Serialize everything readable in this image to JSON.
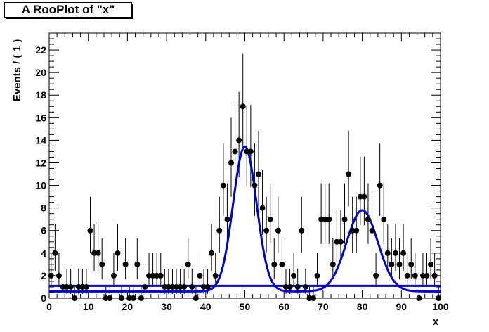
{
  "title": "A RooPlot of \"x\"",
  "chart_data": {
    "type": "scatter",
    "xlabel": "x",
    "ylabel": "Events / ( 1 )",
    "xlim": [
      0,
      100
    ],
    "ylim": [
      0,
      23.5
    ],
    "x_ticks": [
      "0",
      "10",
      "20",
      "30",
      "40",
      "50",
      "60",
      "70",
      "80",
      "90",
      "100"
    ],
    "y_ticks": [
      "0",
      "2",
      "4",
      "6",
      "8",
      "10",
      "12",
      "14",
      "16",
      "18",
      "20",
      "22"
    ],
    "colors": {
      "points": "#000000",
      "curve": "#0000cc"
    },
    "series": [
      {
        "type": "points-with-errors",
        "x": [
          0.5,
          1.5,
          2.5,
          3.5,
          4.5,
          5.5,
          6.5,
          7.5,
          8.5,
          9.5,
          10.5,
          11.5,
          12.5,
          13.5,
          14.5,
          15.5,
          16.5,
          17.5,
          18.5,
          19.5,
          20.5,
          21.5,
          22.5,
          23.5,
          24.5,
          25.5,
          26.5,
          27.5,
          28.5,
          29.5,
          30.5,
          31.5,
          32.5,
          33.5,
          34.5,
          35.5,
          36.5,
          37.5,
          38.5,
          39.5,
          40.5,
          41.5,
          42.5,
          43.5,
          44.5,
          45.5,
          46.5,
          47.5,
          48.5,
          49.5,
          50.5,
          51.5,
          52.5,
          53.5,
          54.5,
          55.5,
          56.5,
          57.5,
          58.5,
          59.5,
          60.5,
          61.5,
          62.5,
          63.5,
          64.5,
          65.5,
          66.5,
          67.5,
          68.5,
          69.5,
          70.5,
          71.5,
          72.5,
          73.5,
          74.5,
          75.5,
          76.5,
          77.5,
          78.5,
          79.5,
          80.5,
          81.5,
          82.5,
          83.5,
          84.5,
          85.5,
          86.5,
          87.5,
          88.5,
          89.5,
          90.5,
          91.5,
          92.5,
          93.5,
          94.5,
          95.5,
          96.5,
          97.5,
          98.5,
          99.5
        ],
        "y": [
          2,
          4,
          2,
          1,
          1,
          1,
          0,
          1,
          1,
          1,
          6,
          4,
          4,
          3,
          0,
          0,
          2,
          4,
          0,
          3,
          0,
          0,
          3,
          0,
          1,
          2,
          2,
          2,
          2,
          1,
          1,
          1,
          1,
          1,
          1,
          3,
          1,
          0,
          2,
          1,
          1,
          4,
          2,
          6,
          10,
          7,
          12,
          13,
          14,
          17,
          13,
          13,
          10,
          11,
          8,
          6,
          7,
          3,
          6,
          3,
          1,
          1,
          2,
          1,
          6,
          1,
          0,
          0,
          2,
          7,
          7,
          7,
          3,
          5,
          5,
          7,
          11,
          6,
          6,
          9,
          9,
          7,
          6,
          2,
          10,
          7,
          4,
          3,
          4,
          3,
          4,
          2,
          3,
          2,
          0,
          2,
          2,
          3,
          2,
          0
        ]
      },
      {
        "type": "curve",
        "model": "flat baseline plus two gaussians",
        "baseline": 0.6,
        "peaks": [
          {
            "mean": 50,
            "sigma": 3,
            "height": 12.85
          },
          {
            "mean": 80,
            "sigma": 4,
            "height": 7.2
          }
        ]
      },
      {
        "type": "curve",
        "model": "constant",
        "value": 1.1
      }
    ]
  }
}
